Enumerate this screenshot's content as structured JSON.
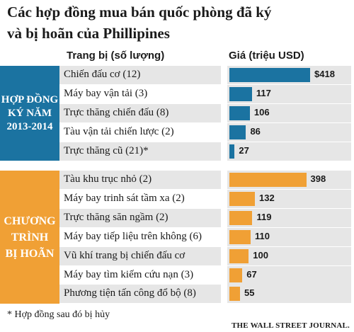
{
  "title_line1": "Các hợp đồng mua bán quốc phòng đã ký",
  "title_line2": "và bị hoãn của Phillipines",
  "col_items": "Trang bị (số lượng)",
  "col_price": "Giá (triệu USD)",
  "groups": [
    {
      "band_lines": [
        "HỢP ĐỒNG",
        "KÝ NĂM",
        "2013-2014"
      ],
      "color": "#1b73a1"
    },
    {
      "band_lines": [
        "CHƯƠNG",
        "TRÌNH",
        "BỊ HOÃN"
      ],
      "color": "#f0a035"
    }
  ],
  "chart_data": {
    "type": "bar",
    "orientation": "horizontal",
    "title": "Các hợp đồng mua bán quốc phòng đã ký và bị hoãn của Phillipines",
    "xlabel": "Giá (triệu USD)",
    "ylabel": "Trang bị (số lượng)",
    "xlim": [
      0,
      418
    ],
    "series": [
      {
        "name": "HỢP ĐỒNG KÝ NĂM 2013-2014",
        "color": "#1b73a1",
        "categories": [
          "Chiến đấu cơ (12)",
          "Máy bay vận tải (3)",
          "Trực thăng chiến đấu (8)",
          "Tàu vận tải chiến lược (2)",
          "Trực thăng cũ (21)*"
        ],
        "values": [
          418,
          117,
          106,
          86,
          27
        ],
        "labels": [
          "$418",
          "117",
          "106",
          "86",
          "27"
        ]
      },
      {
        "name": "CHƯƠNG TRÌNH BỊ HOÃN",
        "color": "#f0a035",
        "categories": [
          "Tàu khu trục nhỏ (2)",
          "Máy bay trinh sát tầm xa (2)",
          "Trực thăng săn ngầm (2)",
          "Máy bay tiếp liệu trên không (6)",
          "Vũ khí trang bị chiến đấu cơ",
          "Máy bay tìm kiếm cứu nạn (3)",
          "Phương tiện tấn công đổ bộ (8)"
        ],
        "values": [
          398,
          132,
          119,
          110,
          100,
          67,
          55
        ],
        "labels": [
          "398",
          "132",
          "119",
          "110",
          "100",
          "67",
          "55"
        ]
      }
    ]
  },
  "footnote": "* Hợp đồng sau đó bị hủy",
  "source": "THE WALL STREET JOURNAL."
}
